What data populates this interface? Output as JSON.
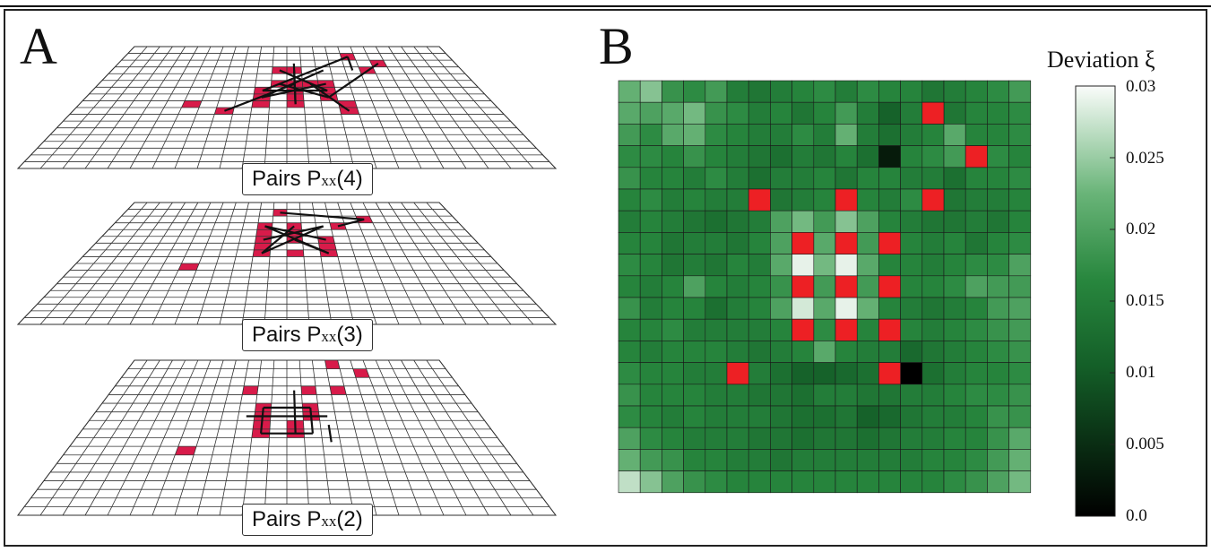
{
  "panelA": {
    "letter": "A",
    "labels": [
      {
        "text_main": "Pairs P",
        "text_sub": "xx",
        "text_arg": "(4)"
      },
      {
        "text_main": "Pairs P",
        "text_sub": "xx",
        "text_arg": "(3)"
      },
      {
        "text_main": "Pairs P",
        "text_sub": "xx",
        "text_arg": "(2)"
      }
    ],
    "grid_rows": 18,
    "grid_cols": 24,
    "highlight_color": "#d81b4a"
  },
  "panelB": {
    "letter": "B",
    "colorbar_title": "Deviation ξ",
    "colorbar_ticks": [
      "0.03",
      "0.025",
      "0.02",
      "0.015",
      "0.01",
      "0.005",
      "0.0"
    ],
    "highlight_color": "#ed2024"
  },
  "chart_data": {
    "type": "heatmap",
    "rows": 19,
    "cols": 19,
    "colorbar_range": [
      0.0,
      0.03
    ],
    "colormap": "black-green-white",
    "values": [
      [
        0.022,
        0.024,
        0.018,
        0.017,
        0.019,
        0.015,
        0.014,
        0.015,
        0.016,
        0.017,
        0.015,
        0.017,
        0.016,
        0.016,
        0.014,
        0.015,
        0.016,
        0.017,
        0.019
      ],
      [
        0.021,
        0.02,
        0.021,
        0.023,
        0.018,
        0.017,
        0.015,
        0.016,
        0.014,
        0.016,
        0.019,
        0.015,
        0.011,
        0.015,
        0.015,
        0.014,
        0.016,
        0.016,
        0.017
      ],
      [
        0.019,
        0.017,
        0.021,
        0.022,
        0.017,
        0.016,
        0.015,
        0.015,
        0.017,
        0.015,
        0.022,
        0.015,
        0.013,
        0.015,
        0.016,
        0.021,
        0.016,
        0.016,
        0.017
      ],
      [
        0.017,
        0.017,
        0.016,
        0.018,
        0.016,
        0.015,
        0.014,
        0.013,
        0.015,
        0.014,
        0.016,
        0.013,
        0.003,
        0.016,
        0.017,
        0.019,
        0.015,
        0.017,
        0.016
      ],
      [
        0.018,
        0.016,
        0.016,
        0.015,
        0.017,
        0.015,
        0.013,
        0.015,
        0.015,
        0.016,
        0.014,
        0.016,
        0.016,
        0.015,
        0.015,
        0.013,
        0.016,
        0.016,
        0.017
      ],
      [
        0.016,
        0.017,
        0.015,
        0.016,
        0.015,
        0.015,
        0.016,
        0.014,
        0.015,
        0.016,
        0.015,
        0.016,
        0.015,
        0.017,
        0.016,
        0.014,
        0.015,
        0.015,
        0.016
      ],
      [
        0.015,
        0.016,
        0.015,
        0.014,
        0.013,
        0.014,
        0.015,
        0.02,
        0.023,
        0.019,
        0.024,
        0.02,
        0.016,
        0.015,
        0.014,
        0.014,
        0.015,
        0.014,
        0.016
      ],
      [
        0.016,
        0.016,
        0.014,
        0.015,
        0.015,
        0.014,
        0.016,
        0.02,
        0.016,
        0.021,
        0.018,
        0.019,
        0.015,
        0.016,
        0.015,
        0.016,
        0.014,
        0.016,
        0.017
      ],
      [
        0.017,
        0.016,
        0.014,
        0.015,
        0.014,
        0.016,
        0.015,
        0.021,
        0.029,
        0.023,
        0.029,
        0.021,
        0.016,
        0.016,
        0.015,
        0.016,
        0.017,
        0.017,
        0.02
      ],
      [
        0.016,
        0.015,
        0.016,
        0.02,
        0.016,
        0.015,
        0.016,
        0.018,
        0.021,
        0.019,
        0.02,
        0.019,
        0.016,
        0.016,
        0.016,
        0.017,
        0.02,
        0.019,
        0.019
      ],
      [
        0.018,
        0.015,
        0.016,
        0.016,
        0.013,
        0.015,
        0.016,
        0.02,
        0.028,
        0.021,
        0.029,
        0.022,
        0.016,
        0.015,
        0.014,
        0.015,
        0.016,
        0.019,
        0.02
      ],
      [
        0.016,
        0.016,
        0.017,
        0.015,
        0.015,
        0.015,
        0.015,
        0.016,
        0.018,
        0.017,
        0.018,
        0.016,
        0.013,
        0.016,
        0.015,
        0.016,
        0.017,
        0.018,
        0.019
      ],
      [
        0.016,
        0.015,
        0.016,
        0.016,
        0.016,
        0.015,
        0.014,
        0.015,
        0.016,
        0.021,
        0.016,
        0.015,
        0.015,
        0.012,
        0.014,
        0.015,
        0.016,
        0.017,
        0.018
      ],
      [
        0.017,
        0.016,
        0.016,
        0.015,
        0.015,
        0.016,
        0.015,
        0.013,
        0.011,
        0.011,
        0.012,
        0.013,
        0.013,
        0.0,
        0.013,
        0.015,
        0.016,
        0.016,
        0.017
      ],
      [
        0.018,
        0.016,
        0.016,
        0.016,
        0.015,
        0.015,
        0.014,
        0.014,
        0.013,
        0.015,
        0.015,
        0.014,
        0.014,
        0.015,
        0.015,
        0.016,
        0.017,
        0.017,
        0.018
      ],
      [
        0.017,
        0.016,
        0.015,
        0.016,
        0.015,
        0.015,
        0.015,
        0.014,
        0.013,
        0.013,
        0.014,
        0.011,
        0.012,
        0.014,
        0.015,
        0.015,
        0.016,
        0.018,
        0.018
      ],
      [
        0.02,
        0.017,
        0.016,
        0.015,
        0.015,
        0.015,
        0.014,
        0.014,
        0.013,
        0.014,
        0.014,
        0.013,
        0.014,
        0.015,
        0.015,
        0.016,
        0.016,
        0.018,
        0.021
      ],
      [
        0.022,
        0.019,
        0.018,
        0.016,
        0.016,
        0.015,
        0.015,
        0.014,
        0.015,
        0.015,
        0.015,
        0.015,
        0.015,
        0.015,
        0.016,
        0.016,
        0.017,
        0.019,
        0.022
      ],
      [
        0.027,
        0.024,
        0.02,
        0.018,
        0.017,
        0.016,
        0.016,
        0.016,
        0.016,
        0.016,
        0.016,
        0.016,
        0.016,
        0.016,
        0.016,
        0.017,
        0.018,
        0.02,
        0.023
      ]
    ],
    "red_cells": [
      [
        1,
        14
      ],
      [
        3,
        16
      ],
      [
        5,
        6
      ],
      [
        5,
        10
      ],
      [
        5,
        14
      ],
      [
        7,
        8
      ],
      [
        7,
        10
      ],
      [
        7,
        12
      ],
      [
        9,
        8
      ],
      [
        9,
        10
      ],
      [
        9,
        12
      ],
      [
        11,
        8
      ],
      [
        11,
        10
      ],
      [
        11,
        12
      ],
      [
        13,
        5
      ],
      [
        13,
        12
      ]
    ]
  }
}
